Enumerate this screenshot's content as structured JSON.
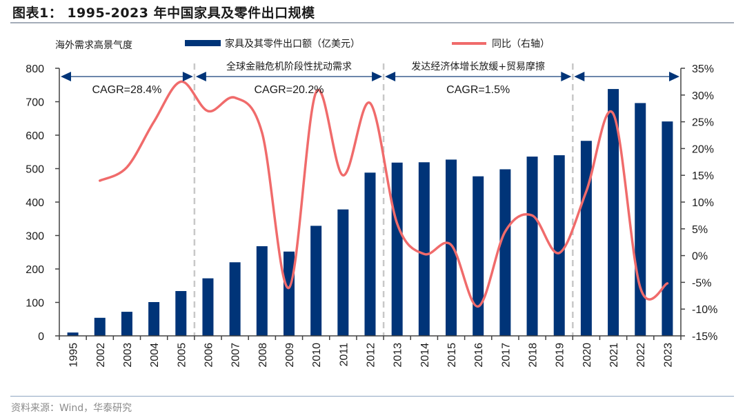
{
  "header": {
    "title": "图表1：  1995-2023 年中国家具及零件出口规模"
  },
  "footer": {
    "source": "资料来源：Wind，华泰研究"
  },
  "colors": {
    "bar": "#003478",
    "line": "#f06b6b",
    "arrow": "#003478",
    "divider": "#c8c8c8",
    "axis": "#404040"
  },
  "chart_data": {
    "type": "bar+line",
    "title": "1995-2023 年中国家具及零件出口规模",
    "categories": [
      "1995",
      "2002",
      "2003",
      "2004",
      "2005",
      "2006",
      "2007",
      "2008",
      "2009",
      "2010",
      "2011",
      "2012",
      "2013",
      "2014",
      "2015",
      "2016",
      "2017",
      "2018",
      "2019",
      "2020",
      "2021",
      "2022",
      "2023"
    ],
    "series": [
      {
        "name": "家具及其零件出口额（亿美元）",
        "type": "bar",
        "axis": "left",
        "values": [
          10,
          54,
          72,
          101,
          134,
          172,
          220,
          268,
          252,
          329,
          378,
          488,
          518,
          519,
          527,
          477,
          498,
          536,
          540,
          583,
          738,
          696,
          641
        ]
      },
      {
        "name": "同比（右轴）",
        "type": "line",
        "axis": "right",
        "unit": "%",
        "values": [
          null,
          14.0,
          16.5,
          25.0,
          32.5,
          27.0,
          29.5,
          23.0,
          -6.0,
          30.5,
          15.0,
          28.5,
          6.0,
          0.3,
          2.0,
          -9.5,
          4.5,
          7.5,
          0.5,
          12.0,
          26.5,
          -6.0,
          -5.2
        ]
      }
    ],
    "left_axis": {
      "ylim": [
        0,
        800
      ],
      "ticks": [
        0,
        100,
        200,
        300,
        400,
        500,
        600,
        700,
        800
      ],
      "tick_labels": [
        "0",
        "100",
        "200",
        "300",
        "400",
        "500",
        "600",
        "700",
        "800"
      ]
    },
    "right_axis": {
      "ylim": [
        -15,
        35
      ],
      "ticks": [
        -15,
        -10,
        -5,
        0,
        5,
        10,
        15,
        20,
        25,
        30,
        35
      ],
      "tick_labels": [
        "-15%",
        "-10%",
        "-5%",
        "0%",
        "5%",
        "10%",
        "15%",
        "20%",
        "25%",
        "30%",
        "35%"
      ]
    },
    "legend": {
      "placement": "top",
      "heading": "海外需求高景气度",
      "items": [
        "家具及其零件出口额（亿美元）",
        "同比（右轴）"
      ]
    },
    "periods": [
      {
        "from": "1995",
        "to": "2005",
        "label": "",
        "cagr": "CAGR=28.4%"
      },
      {
        "from": "2006",
        "to": "2012",
        "label": "全球金融危机阶段性扰动需求",
        "cagr": "CAGR=20.2%"
      },
      {
        "from": "2013",
        "to": "2019",
        "label": "发达经济体增长放缓+贸易摩擦",
        "cagr": "CAGR=1.5%"
      },
      {
        "from": "2020",
        "to": "2023",
        "label": "",
        "cagr": ""
      }
    ],
    "dividers_after": [
      "2005",
      "2012",
      "2019"
    ],
    "grid": false
  }
}
